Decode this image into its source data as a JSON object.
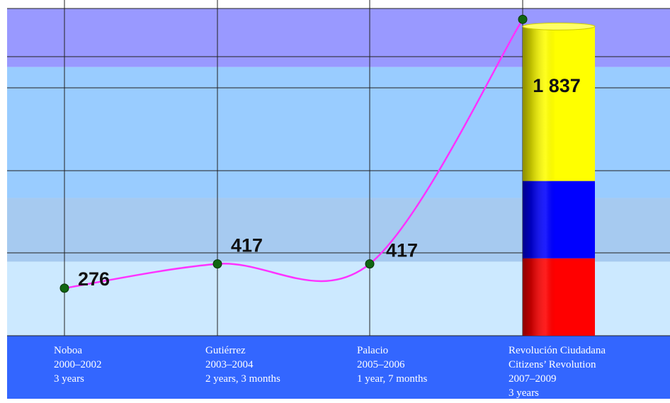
{
  "chart_data": {
    "type": "line",
    "title": "",
    "xlabel": "",
    "ylabel": "",
    "ylim": [
      0,
      1900
    ],
    "grid": true,
    "series": [
      {
        "values": [
          276,
          417,
          417,
          1837
        ]
      }
    ],
    "point_labels": [
      "276",
      "417",
      "417",
      "1 837"
    ],
    "categories": [
      {
        "lines": [
          "Noboa",
          "2000–2002",
          "3 years"
        ]
      },
      {
        "lines": [
          "Gutiérrez",
          "2003–2004",
          "2 years, 3 months"
        ]
      },
      {
        "lines": [
          "Palacio",
          "2005–2006",
          "1 year, 7 months"
        ]
      },
      {
        "lines": [
          "Revolución Ciudadana",
          "Citizens’ Revolution",
          "2007–2009",
          "3 years"
        ]
      }
    ],
    "bands": [
      {
        "from": 1560,
        "to": 1900,
        "color": "#9999ff"
      },
      {
        "from": 800,
        "to": 1560,
        "color": "#99ccff"
      },
      {
        "from": 430,
        "to": 800,
        "color": "#a6caf0"
      },
      {
        "from": 0,
        "to": 430,
        "color": "#cce9ff"
      }
    ],
    "flag_bar": {
      "category_index": 3,
      "value": 1837,
      "segments": [
        {
          "fraction": 0.5,
          "color": "#ffff00"
        },
        {
          "fraction": 0.25,
          "color": "#0000ff"
        },
        {
          "fraction": 0.25,
          "color": "#ff0000"
        }
      ]
    },
    "colors": {
      "line": "#ff33ff",
      "point": "#116611",
      "category_band": "#3366ff",
      "grid": "#222222"
    }
  }
}
